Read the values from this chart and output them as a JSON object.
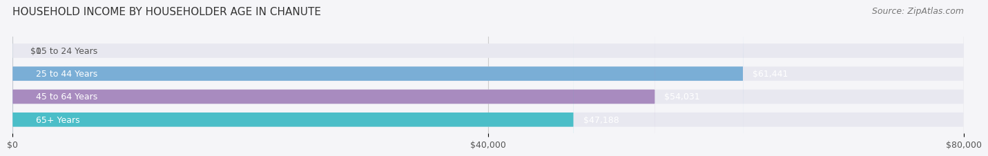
{
  "title": "HOUSEHOLD INCOME BY HOUSEHOLDER AGE IN CHANUTE",
  "source": "Source: ZipAtlas.com",
  "categories": [
    "15 to 24 Years",
    "25 to 44 Years",
    "45 to 64 Years",
    "65+ Years"
  ],
  "values": [
    0,
    61441,
    54031,
    47188
  ],
  "bar_colors": [
    "#e8a0a8",
    "#7aaed6",
    "#a88bbf",
    "#4bbec8"
  ],
  "bar_bg_color": "#e8e8f0",
  "value_labels": [
    "$0",
    "$61,441",
    "$54,031",
    "$47,188"
  ],
  "xlim": [
    0,
    80000
  ],
  "xticks": [
    0,
    40000,
    80000
  ],
  "xticklabels": [
    "$0",
    "$40,000",
    "$80,000"
  ],
  "background_color": "#f5f5f8",
  "title_fontsize": 11,
  "source_fontsize": 9,
  "label_fontsize": 9,
  "bar_height": 0.62,
  "bar_gap": 0.12
}
